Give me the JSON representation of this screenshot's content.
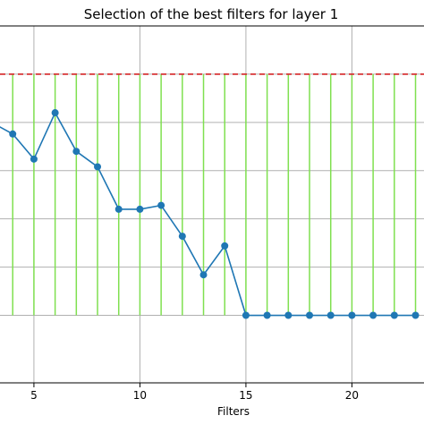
{
  "chart_data": {
    "type": "line",
    "title": "Selection of the best filters for layer 1",
    "xlabel": "Filters",
    "ylabel": "",
    "xlim": [
      3.4,
      23.4
    ],
    "ylim": [
      -0.35,
      1.5
    ],
    "x_ticks": [
      5,
      10,
      15,
      20
    ],
    "x_tick_labels": [
      "5",
      "10",
      "15",
      "20"
    ],
    "y_gridlines": [
      0,
      0.25,
      0.5,
      0.75,
      1.0,
      1.25
    ],
    "grid": true,
    "series": [
      {
        "color": "#1f77b4",
        "marker": "circle",
        "x": [
          3,
          4,
          5,
          6,
          7,
          8,
          9,
          10,
          11,
          12,
          13,
          14,
          15,
          16,
          17,
          18,
          19,
          20,
          21,
          22,
          23
        ],
        "y": [
          1.0,
          0.94,
          0.81,
          1.05,
          0.85,
          0.77,
          0.55,
          0.55,
          0.57,
          0.41,
          0.21,
          0.36,
          0.0,
          0.0,
          0.0,
          0.0,
          0.0,
          0.0,
          0.0,
          0.0,
          0.0
        ]
      }
    ],
    "threshold": {
      "y": 1.25,
      "color": "#d62728",
      "style": "dashed"
    },
    "vlines": {
      "x": [
        3,
        4,
        5,
        6,
        7,
        8,
        9,
        10,
        11,
        12,
        13,
        14,
        15,
        16,
        17,
        18,
        19,
        20,
        21,
        22,
        23
      ],
      "color": "#7fe04f"
    }
  }
}
